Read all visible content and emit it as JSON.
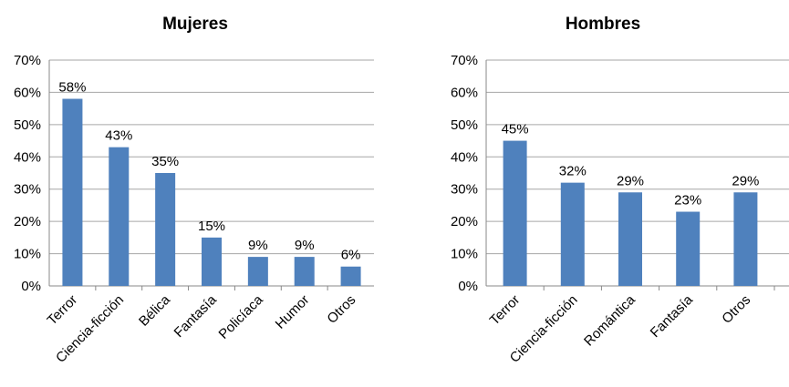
{
  "chart_data": [
    {
      "type": "bar",
      "title": "Mujeres",
      "categories": [
        "Terror",
        "Ciencia-ficción",
        "Bélica",
        "Fantasía",
        "Policíaca",
        "Humor",
        "Otros"
      ],
      "values": [
        58,
        43,
        35,
        15,
        9,
        9,
        6
      ],
      "value_labels": [
        "58%",
        "43%",
        "35%",
        "15%",
        "9%",
        "9%",
        "6%"
      ],
      "yticks": [
        "0%",
        "10%",
        "20%",
        "30%",
        "40%",
        "50%",
        "60%",
        "70%"
      ],
      "ylim": [
        0,
        70
      ],
      "grid": true,
      "legend": "none",
      "bar_color": "#4F81BD"
    },
    {
      "type": "bar",
      "title": "Hombres",
      "categories": [
        "Terror",
        "Ciencia-ficción",
        "Romántica",
        "Fantasía",
        "Otros"
      ],
      "values": [
        45,
        32,
        29,
        23,
        29
      ],
      "value_labels": [
        "45%",
        "32%",
        "29%",
        "23%",
        "29%"
      ],
      "yticks": [
        "0%",
        "10%",
        "20%",
        "30%",
        "40%",
        "50%",
        "60%",
        "70%"
      ],
      "ylim": [
        0,
        70
      ],
      "grid": true,
      "legend": "none",
      "bar_color": "#4F81BD"
    }
  ]
}
